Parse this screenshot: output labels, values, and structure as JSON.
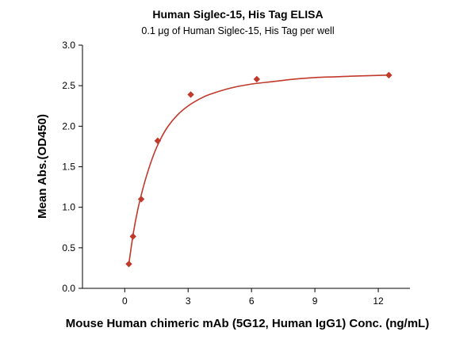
{
  "chart_data": {
    "type": "scatter",
    "title": "Human Siglec-15, His Tag ELISA",
    "subtitle": "0.1 μg of Human Siglec-15, His Tag per well",
    "xlabel": "Mouse Human chimeric mAb (5G12, Human IgG1) Conc. (ng/mL)",
    "ylabel": "Mean Abs.(OD450)",
    "xlim": [
      -2,
      13.5
    ],
    "ylim": [
      0,
      3.0
    ],
    "x_ticks": [
      0,
      3,
      6,
      9,
      12
    ],
    "x_tick_labels": [
      "0",
      "3",
      "6",
      "9",
      "12"
    ],
    "y_ticks": [
      0,
      0.5,
      1.0,
      1.5,
      2.0,
      2.5,
      3.0
    ],
    "y_tick_labels": [
      "0.0",
      "0.5",
      "1.0",
      "1.5",
      "2.0",
      "2.5",
      "3.0"
    ],
    "grid": false,
    "legend": "none",
    "series": [
      {
        "marker": "diamond",
        "color": "#c0392b",
        "points": [
          {
            "x": 0.195,
            "y": 0.3
          },
          {
            "x": 0.39,
            "y": 0.64
          },
          {
            "x": 0.78,
            "y": 1.1
          },
          {
            "x": 1.56,
            "y": 1.82
          },
          {
            "x": 3.125,
            "y": 2.39
          },
          {
            "x": 6.25,
            "y": 2.58
          },
          {
            "x": 12.5,
            "y": 2.63
          }
        ],
        "fit": {
          "model": "sigmoidal",
          "color": "#c0392b",
          "curve": [
            {
              "x": 0.195,
              "y": 0.3
            },
            {
              "x": 0.4,
              "y": 0.67
            },
            {
              "x": 0.6,
              "y": 0.95
            },
            {
              "x": 0.8,
              "y": 1.17
            },
            {
              "x": 1.0,
              "y": 1.36
            },
            {
              "x": 1.3,
              "y": 1.6
            },
            {
              "x": 1.6,
              "y": 1.79
            },
            {
              "x": 2.0,
              "y": 1.98
            },
            {
              "x": 2.5,
              "y": 2.14
            },
            {
              "x": 3.0,
              "y": 2.25
            },
            {
              "x": 3.5,
              "y": 2.33
            },
            {
              "x": 4.0,
              "y": 2.39
            },
            {
              "x": 5.0,
              "y": 2.47
            },
            {
              "x": 6.0,
              "y": 2.52
            },
            {
              "x": 7.0,
              "y": 2.55
            },
            {
              "x": 8.0,
              "y": 2.58
            },
            {
              "x": 9.0,
              "y": 2.6
            },
            {
              "x": 10.0,
              "y": 2.61
            },
            {
              "x": 11.0,
              "y": 2.62
            },
            {
              "x": 12.5,
              "y": 2.63
            }
          ]
        }
      }
    ]
  }
}
